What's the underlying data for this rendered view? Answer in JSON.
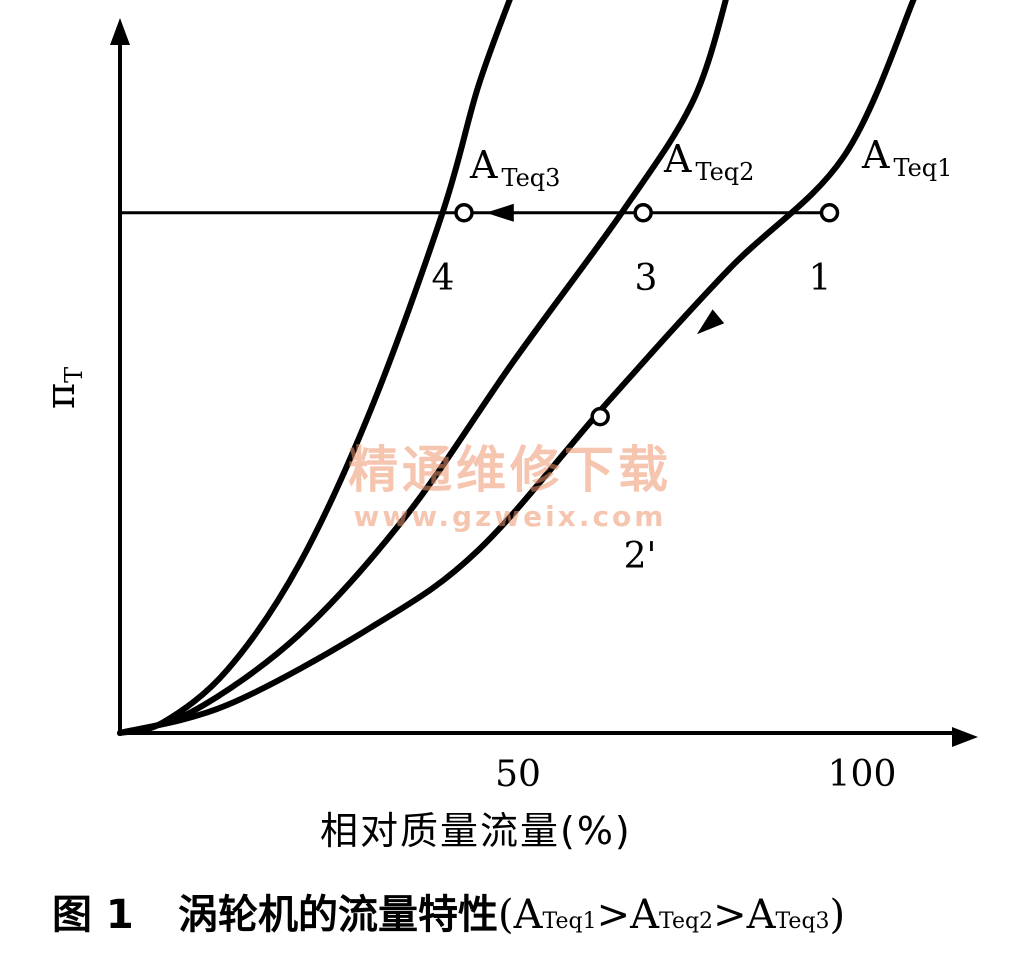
{
  "chart_data": {
    "type": "line",
    "ylabel": "π",
    "ylabel_sub": "T",
    "xlabel": "相对质量流量(%)",
    "x_ticks": [
      "50",
      "100"
    ],
    "xlim": [
      0,
      120
    ],
    "ylim": [
      0,
      10
    ],
    "grid": false,
    "series": [
      {
        "name": "A",
        "name_sub": "Teq3",
        "points": [
          [
            0,
            0
          ],
          [
            6,
            0.15
          ],
          [
            15,
            0.9
          ],
          [
            25,
            2.4
          ],
          [
            35,
            4.6
          ],
          [
            45,
            7.4
          ],
          [
            50,
            9.2
          ],
          [
            55,
            10.6
          ]
        ]
      },
      {
        "name": "A",
        "name_sub": "Teq2",
        "points": [
          [
            0,
            0
          ],
          [
            10,
            0.3
          ],
          [
            25,
            1.4
          ],
          [
            40,
            3.1
          ],
          [
            55,
            5.3
          ],
          [
            70,
            7.4
          ],
          [
            80,
            9.0
          ],
          [
            85,
            10.6
          ]
        ]
      },
      {
        "name": "A",
        "name_sub": "Teq1",
        "points": [
          [
            0,
            0
          ],
          [
            15,
            0.4
          ],
          [
            35,
            1.5
          ],
          [
            50,
            2.6
          ],
          [
            68,
            4.7
          ],
          [
            85,
            6.6
          ],
          [
            101,
            8.2
          ],
          [
            111,
            10.5
          ]
        ]
      }
    ],
    "reference_line": {
      "y": 7.4,
      "x_from": 0,
      "x_to": 99
    },
    "arrows": [
      {
        "at": [
          53,
          7.4
        ],
        "direction": "left"
      },
      {
        "at": [
          82,
          5.8
        ],
        "direction": "down-left"
      }
    ],
    "points": [
      {
        "label": "1",
        "x": 99,
        "y": 7.4
      },
      {
        "label": "2'",
        "x": 67,
        "y": 4.5
      },
      {
        "label": "3",
        "x": 73,
        "y": 7.4
      },
      {
        "label": "4",
        "x": 48,
        "y": 7.4
      }
    ]
  },
  "caption": {
    "prefix": "图 1",
    "title": "涡轮机的流量特性",
    "paren_open": "(",
    "paren_close": ")",
    "gt": ">",
    "terms": [
      {
        "main": "A",
        "sub": "Teq1"
      },
      {
        "main": "A",
        "sub": "Teq2"
      },
      {
        "main": "A",
        "sub": "Teq3"
      }
    ]
  },
  "watermark": {
    "text": "精通维修下载",
    "url": "www.gzweix.com"
  }
}
